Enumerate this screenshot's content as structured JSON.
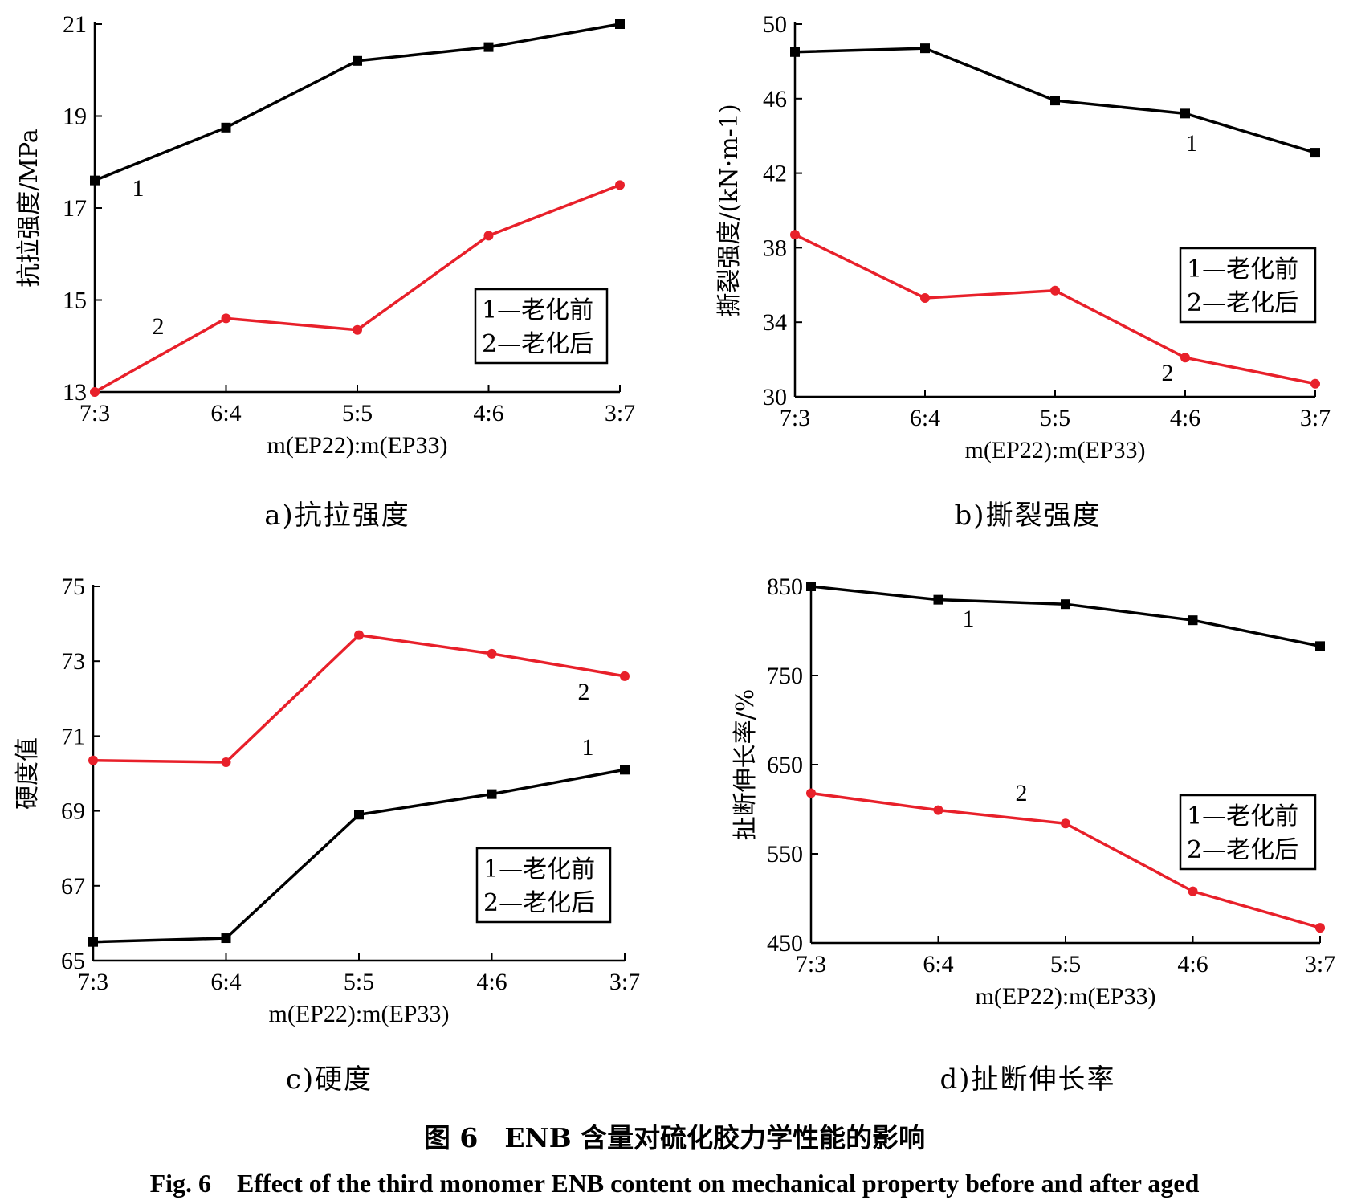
{
  "colors": {
    "before": "#000000",
    "after": "#e8202a"
  },
  "figure_caption": {
    "cn": "图 6　ENB 含量对硫化胶力学性能的影响",
    "en": "Fig. 6　Effect of the third monomer ENB content on mechanical property before and after aged"
  },
  "chart_data": [
    {
      "id": "a",
      "type": "line",
      "caption": "a)抗拉强度",
      "ylabel": "抗拉强度/MPa",
      "xlabel": "m(EP22):m(EP33)",
      "categories": [
        "7:3",
        "6:4",
        "5:5",
        "4:6",
        "3:7"
      ],
      "ylim": [
        13,
        21
      ],
      "yticks": [
        13,
        15,
        17,
        19,
        21
      ],
      "series": [
        {
          "label": "1",
          "values": [
            17.6,
            18.75,
            20.2,
            20.5,
            21.0
          ]
        },
        {
          "label": "2",
          "values": [
            13.0,
            14.6,
            14.35,
            16.4,
            17.5
          ]
        }
      ],
      "legend": {
        "items": [
          "1—老化前",
          "2—老化后"
        ],
        "position": "bottom-right"
      }
    },
    {
      "id": "b",
      "type": "line",
      "caption": "b)撕裂强度",
      "ylabel": "撕裂强度/(kN·m-1)",
      "xlabel": "m(EP22):m(EP33)",
      "categories": [
        "7:3",
        "6:4",
        "5:5",
        "4:6",
        "3:7"
      ],
      "ylim": [
        30,
        50
      ],
      "yticks": [
        30,
        34,
        38,
        42,
        46,
        50
      ],
      "series": [
        {
          "label": "1",
          "values": [
            48.5,
            48.7,
            45.9,
            45.2,
            43.1
          ]
        },
        {
          "label": "2",
          "values": [
            38.7,
            35.3,
            35.7,
            32.1,
            30.7
          ]
        }
      ],
      "legend": {
        "items": [
          "1—老化前",
          "2—老化后"
        ],
        "position": "middle-right"
      }
    },
    {
      "id": "c",
      "type": "line",
      "caption": "c)硬度",
      "ylabel": "硬度值",
      "xlabel": "m(EP22):m(EP33)",
      "categories": [
        "7:3",
        "6:4",
        "5:5",
        "4:6",
        "3:7"
      ],
      "ylim": [
        65,
        75
      ],
      "yticks": [
        65,
        67,
        69,
        71,
        73,
        75
      ],
      "series": [
        {
          "label": "1",
          "values": [
            65.5,
            65.6,
            68.9,
            69.45,
            70.1
          ]
        },
        {
          "label": "2",
          "values": [
            70.35,
            70.3,
            73.7,
            73.2,
            72.6
          ]
        }
      ],
      "legend": {
        "items": [
          "1—老化前",
          "2—老化后"
        ],
        "position": "bottom-right"
      }
    },
    {
      "id": "d",
      "type": "line",
      "caption": "d)扯断伸长率",
      "ylabel": "扯断伸长率/%",
      "xlabel": "m(EP22):m(EP33)",
      "categories": [
        "7:3",
        "6:4",
        "5:5",
        "4:6",
        "3:7"
      ],
      "ylim": [
        450,
        850
      ],
      "yticks": [
        450,
        550,
        650,
        750,
        850
      ],
      "series": [
        {
          "label": "1",
          "values": [
            850,
            835,
            830,
            812,
            783
          ]
        },
        {
          "label": "2",
          "values": [
            618,
            599,
            584,
            508,
            467
          ]
        }
      ],
      "legend": {
        "items": [
          "1—老化前",
          "2—老化后"
        ],
        "position": "bottom-right"
      }
    }
  ]
}
